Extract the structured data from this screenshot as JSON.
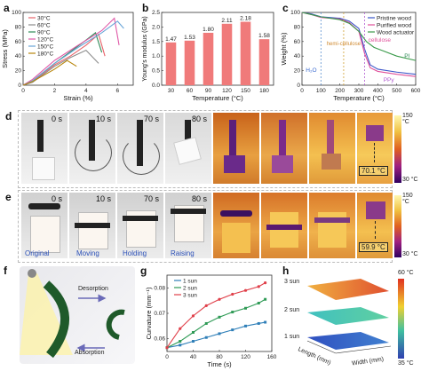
{
  "panel_labels": [
    "a",
    "b",
    "c",
    "d",
    "e",
    "f",
    "g",
    "h"
  ],
  "colors": {
    "s30": "#e8636a",
    "s60": "#8c8c8c",
    "s90": "#2e8b57",
    "s120": "#e05aa8",
    "s150": "#6aa5d8",
    "s180": "#b8860b",
    "bar": "#f07a7a",
    "pristine": "#3a55c8",
    "purified": "#e0509a",
    "actuator": "#3a9a4a",
    "g1": "#2f7fb8",
    "g2": "#2e9a55",
    "g3": "#e0404a"
  },
  "panel_d": {
    "times": [
      "0 s",
      "10 s",
      "70 s",
      "80 s"
    ],
    "temp_readout": "70.1 °C",
    "cbar_max": "150 °C",
    "cbar_min": "30 °C"
  },
  "panel_e": {
    "times": [
      "0 s",
      "10 s",
      "70 s",
      "80 s"
    ],
    "captions": [
      "Original",
      "Moving",
      "Holding",
      "Raising"
    ],
    "temp_readout": "59.9 °C",
    "cbar_max": "150 °C",
    "cbar_min": "30 °C"
  },
  "panel_f": {
    "desorption": "Desorption",
    "absorption": "Absorption"
  },
  "panel_h": {
    "sun_labels": [
      "3 sun",
      "2 sun",
      "1 sun"
    ],
    "xlabel": "Width (mm)",
    "ylabel": "Length (mm)",
    "cbar_max": "60 °C",
    "cbar_min": "35 °C"
  },
  "chart_data": [
    {
      "id": "a",
      "type": "line",
      "xlabel": "Strain (%)",
      "ylabel": "Stress (MPa)",
      "xlim": [
        0,
        7
      ],
      "ylim": [
        0,
        100
      ],
      "xticks": [
        0,
        2,
        4,
        6
      ],
      "yticks": [
        0,
        20,
        40,
        60,
        80,
        100
      ],
      "legend_position": "top-left",
      "series": [
        {
          "name": "30°C",
          "x": [
            0,
            0.6,
            2.0,
            3.0,
            4.0,
            4.8,
            5.2
          ],
          "y": [
            0,
            5,
            28,
            40,
            55,
            70,
            40
          ]
        },
        {
          "name": "60°C",
          "x": [
            0,
            0.6,
            2.0,
            3.0,
            4.0,
            4.8
          ],
          "y": [
            0,
            4,
            26,
            38,
            48,
            30
          ]
        },
        {
          "name": "90°C",
          "x": [
            0,
            0.6,
            2.0,
            3.0,
            4.0,
            4.6,
            5.0
          ],
          "y": [
            0,
            6,
            30,
            46,
            62,
            72,
            45
          ]
        },
        {
          "name": "120°C",
          "x": [
            0,
            0.6,
            2.0,
            3.5,
            5.0,
            5.8,
            6.1
          ],
          "y": [
            0,
            8,
            34,
            55,
            75,
            92,
            55
          ]
        },
        {
          "name": "150°C",
          "x": [
            0,
            0.6,
            2.0,
            3.5,
            5.0,
            6.0,
            6.4
          ],
          "y": [
            0,
            6,
            30,
            52,
            72,
            88,
            78
          ]
        },
        {
          "name": "180°C",
          "x": [
            0,
            0.6,
            2.0,
            2.8,
            3.4
          ],
          "y": [
            0,
            5,
            22,
            34,
            26
          ]
        }
      ]
    },
    {
      "id": "b",
      "type": "bar",
      "xlabel": "Temperature (°C)",
      "ylabel": "Young's modulus (GPa)",
      "categories": [
        "30",
        "60",
        "90",
        "120",
        "150",
        "180"
      ],
      "values": [
        1.47,
        1.53,
        1.8,
        2.11,
        2.18,
        1.58
      ],
      "ylim": [
        0,
        2.5
      ],
      "yticks": [
        0.0,
        0.5,
        1.0,
        1.5,
        2.0,
        2.5
      ]
    },
    {
      "id": "c",
      "type": "line",
      "xlabel": "Temperature (°C)",
      "ylabel": "Weight (%)",
      "xlim": [
        0,
        600
      ],
      "ylim": [
        0,
        100
      ],
      "xticks": [
        0,
        100,
        200,
        300,
        400,
        500,
        600
      ],
      "yticks": [
        0,
        20,
        40,
        60,
        80,
        100
      ],
      "legend_position": "top-right",
      "annotations": [
        "H₂O",
        "hemi-cellulose",
        "cellulose",
        "PI",
        "PPy"
      ],
      "series": [
        {
          "name": "Pristine wood",
          "x": [
            0,
            50,
            100,
            200,
            250,
            300,
            330,
            360,
            400,
            500,
            600
          ],
          "y": [
            100,
            98,
            94,
            92,
            88,
            78,
            50,
            28,
            22,
            18,
            15
          ]
        },
        {
          "name": "Purified wood",
          "x": [
            0,
            50,
            100,
            200,
            250,
            300,
            330,
            360,
            400,
            500,
            600
          ],
          "y": [
            100,
            97,
            93,
            91,
            86,
            74,
            44,
            24,
            19,
            15,
            12
          ]
        },
        {
          "name": "Wood actuator",
          "x": [
            0,
            50,
            100,
            200,
            250,
            300,
            340,
            380,
            420,
            500,
            600
          ],
          "y": [
            100,
            97,
            94,
            90,
            85,
            74,
            60,
            52,
            48,
            40,
            34
          ]
        }
      ]
    },
    {
      "id": "g",
      "type": "line",
      "xlabel": "Time (s)",
      "ylabel": "Curvature (mm⁻¹)",
      "xlim": [
        0,
        160
      ],
      "ylim": [
        0.055,
        0.085
      ],
      "xticks": [
        0,
        40,
        80,
        120,
        160
      ],
      "yticks": [
        0.06,
        0.07,
        0.08
      ],
      "legend_position": "top-left",
      "series": [
        {
          "name": "1 sun",
          "x": [
            0,
            20,
            40,
            60,
            80,
            100,
            120,
            140,
            150
          ],
          "y": [
            0.0565,
            0.0575,
            0.059,
            0.0605,
            0.062,
            0.0635,
            0.065,
            0.066,
            0.0665
          ]
        },
        {
          "name": "2 sun",
          "x": [
            0,
            20,
            40,
            60,
            80,
            100,
            120,
            140,
            150
          ],
          "y": [
            0.0565,
            0.059,
            0.0625,
            0.066,
            0.0685,
            0.0705,
            0.072,
            0.074,
            0.0755
          ]
        },
        {
          "name": "3 sun",
          "x": [
            0,
            20,
            40,
            60,
            80,
            100,
            120,
            140,
            150
          ],
          "y": [
            0.0565,
            0.064,
            0.069,
            0.073,
            0.0755,
            0.0775,
            0.079,
            0.0805,
            0.082
          ]
        }
      ]
    }
  ]
}
